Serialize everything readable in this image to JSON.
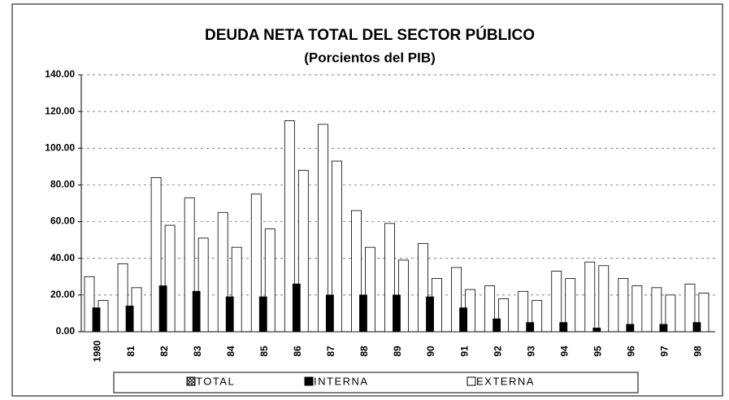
{
  "chart_data": {
    "type": "bar",
    "title": "DEUDA NETA TOTAL DEL SECTOR PÚBLICO",
    "subtitle": "(Porcientos del PIB)",
    "categories": [
      "1980",
      "81",
      "82",
      "83",
      "84",
      "85",
      "86",
      "87",
      "88",
      "89",
      "90",
      "91",
      "92",
      "93",
      "94",
      "95",
      "96",
      "97",
      "98"
    ],
    "series": [
      {
        "name": "TOTAL",
        "color": "#ffffff",
        "values": [
          30,
          37,
          84,
          73,
          65,
          75,
          115,
          113,
          66,
          59,
          48,
          35,
          25,
          22,
          33,
          38,
          29,
          24,
          26
        ]
      },
      {
        "name": "INTERNA",
        "color": "#000000",
        "values": [
          13,
          14,
          25,
          22,
          19,
          19,
          26,
          20,
          20,
          20,
          19,
          13,
          7,
          5,
          5,
          2,
          4,
          4,
          5
        ]
      },
      {
        "name": "EXTERNA",
        "color": "#ffffff",
        "values": [
          17,
          24,
          58,
          51,
          46,
          56,
          88,
          93,
          46,
          39,
          29,
          23,
          18,
          17,
          29,
          36,
          25,
          20,
          21
        ]
      }
    ],
    "ylim": [
      0,
      140
    ],
    "yticks": [
      {
        "value": 0,
        "label": "0.00"
      },
      {
        "value": 20,
        "label": "20.00"
      },
      {
        "value": 40,
        "label": "40.00"
      },
      {
        "value": 60,
        "label": "60.00"
      },
      {
        "value": 80,
        "label": "80.00"
      },
      {
        "value": 100,
        "label": "100.00"
      },
      {
        "value": 120,
        "label": "120.00"
      },
      {
        "value": 140,
        "label": "140.00"
      }
    ],
    "grid": true
  }
}
